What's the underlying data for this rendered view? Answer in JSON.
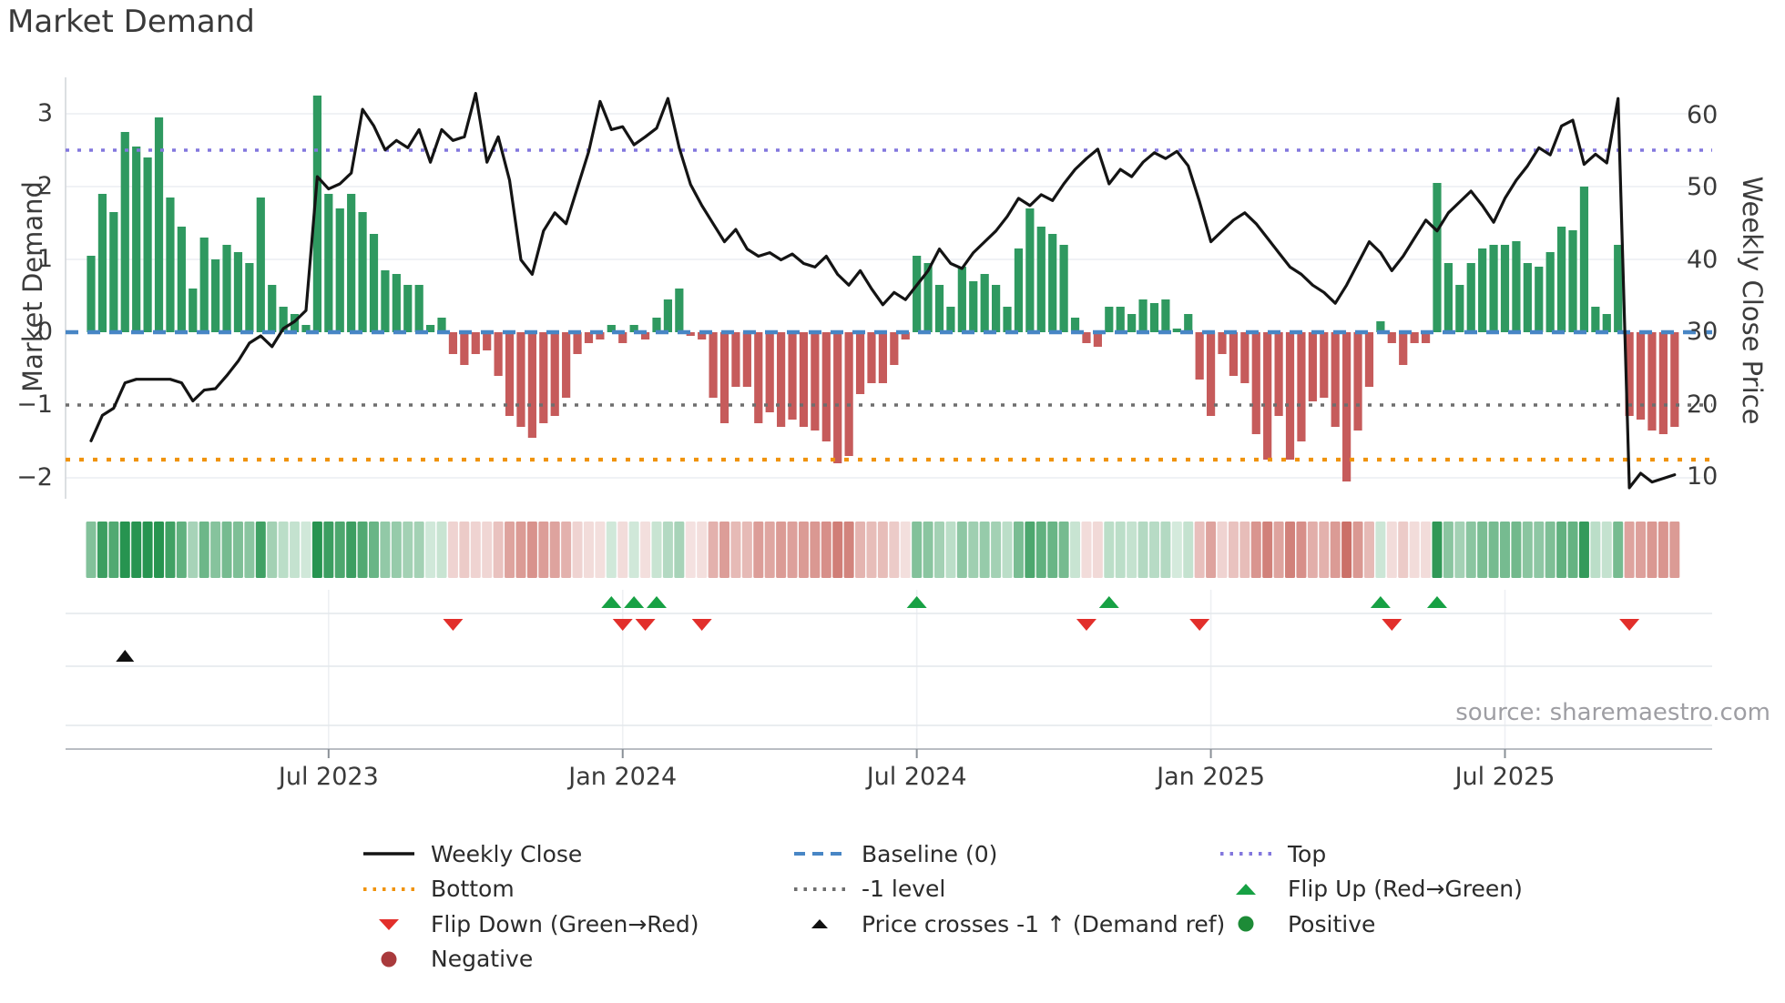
{
  "title": "Market Demand",
  "source_credit": "source: sharemaestro.com",
  "axes": {
    "left_title": "Market Demand",
    "right_title": "Weekly Close Price",
    "left_ticks": [
      {
        "label": "3",
        "value": 3
      },
      {
        "label": "2",
        "value": 2
      },
      {
        "label": "1",
        "value": 1
      },
      {
        "label": "0",
        "value": 0
      },
      {
        "label": "−1",
        "value": -1
      },
      {
        "label": "−2",
        "value": -2
      }
    ],
    "right_ticks": [
      {
        "label": "60",
        "value": 60
      },
      {
        "label": "50",
        "value": 50
      },
      {
        "label": "40",
        "value": 40
      },
      {
        "label": "30",
        "value": 30
      },
      {
        "label": "20",
        "value": 20
      },
      {
        "label": "10",
        "value": 10
      }
    ],
    "x_ticks": [
      {
        "label": "Jul 2023",
        "week": 21
      },
      {
        "label": "Jan 2024",
        "week": 47
      },
      {
        "label": "Jul 2024",
        "week": 73
      },
      {
        "label": "Jan 2025",
        "week": 99
      },
      {
        "label": "Jul 2025",
        "week": 125
      }
    ]
  },
  "chart_data": {
    "type": "bar+line",
    "title": "Market Demand",
    "x_unit": "weekly (Feb 2023 – Oct 2025)",
    "n_points": 141,
    "demand_ylim": [
      -2.35,
      3.5
    ],
    "price_ylim": [
      7,
      65.5
    ],
    "grid": "horizontal-light",
    "demand": [
      1.05,
      1.9,
      1.65,
      2.75,
      2.55,
      2.4,
      2.95,
      1.85,
      1.45,
      0.6,
      1.3,
      1.0,
      1.2,
      1.1,
      0.95,
      1.85,
      0.65,
      0.35,
      0.25,
      0.1,
      3.25,
      1.9,
      1.7,
      1.9,
      1.65,
      1.35,
      0.85,
      0.8,
      0.65,
      0.65,
      0.1,
      0.2,
      -0.3,
      -0.45,
      -0.3,
      -0.25,
      -0.6,
      -1.15,
      -1.3,
      -1.45,
      -1.25,
      -1.15,
      -0.9,
      -0.3,
      -0.15,
      -0.1,
      0.1,
      -0.15,
      0.1,
      -0.1,
      0.2,
      0.45,
      0.6,
      -0.05,
      -0.1,
      -0.9,
      -1.25,
      -0.75,
      -0.75,
      -1.25,
      -1.1,
      -1.3,
      -1.2,
      -1.3,
      -1.35,
      -1.5,
      -1.8,
      -1.7,
      -0.85,
      -0.7,
      -0.7,
      -0.45,
      -0.1,
      1.05,
      0.95,
      0.65,
      0.35,
      0.9,
      0.7,
      0.8,
      0.65,
      0.35,
      1.15,
      1.7,
      1.45,
      1.35,
      1.2,
      0.2,
      -0.15,
      -0.2,
      0.35,
      0.35,
      0.25,
      0.45,
      0.4,
      0.45,
      0.05,
      0.25,
      -0.65,
      -1.15,
      -0.3,
      -0.6,
      -0.7,
      -1.4,
      -1.75,
      -1.15,
      -1.75,
      -1.5,
      -0.95,
      -0.9,
      -1.3,
      -2.05,
      -1.35,
      -0.75,
      0.15,
      -0.15,
      -0.45,
      -0.15,
      -0.15,
      2.05,
      0.95,
      0.65,
      0.95,
      1.15,
      1.2,
      1.2,
      1.25,
      0.95,
      0.9,
      1.1,
      1.45,
      1.4,
      2.0,
      0.35,
      0.25,
      1.2,
      -1.15,
      -1.2,
      -1.35,
      -1.4,
      -1.3
    ],
    "price": [
      15,
      18.5,
      19.5,
      23,
      23.5,
      23.5,
      23.5,
      23.5,
      23,
      20.5,
      22,
      22.2,
      24,
      26,
      28.5,
      29.5,
      28,
      30.5,
      31.5,
      33,
      51.5,
      49.8,
      50.5,
      52,
      60.8,
      58.5,
      55.2,
      56.5,
      55.5,
      58,
      53.5,
      58,
      56.5,
      57,
      63,
      53.5,
      57,
      51,
      40,
      38,
      44,
      46.5,
      45,
      50,
      55,
      61.9,
      58,
      58.4,
      55.9,
      57,
      58.2,
      62.3,
      55.5,
      50.4,
      47.5,
      45,
      42.5,
      44.2,
      41.5,
      40.5,
      41,
      40,
      40.8,
      39.5,
      39,
      40.5,
      38,
      36.5,
      38.5,
      36,
      33.8,
      35.5,
      34.5,
      36.5,
      38.5,
      41.5,
      39.5,
      38.8,
      41,
      42.5,
      44,
      46,
      48.5,
      47.5,
      49,
      48.2,
      50.5,
      52.5,
      54,
      55.3,
      50.5,
      52.5,
      51.5,
      53.5,
      54.8,
      54,
      55,
      53,
      48,
      42.5,
      44,
      45.5,
      46.5,
      45,
      43,
      41,
      39,
      38,
      36.5,
      35.5,
      34,
      36.5,
      39.5,
      42.5,
      41,
      38.5,
      40.5,
      43,
      45.5,
      44,
      46.5,
      48,
      49.5,
      47.5,
      45.2,
      48.5,
      51,
      53,
      55.5,
      54.5,
      58.5,
      59.3,
      53.2,
      54.6,
      53.4,
      62.3,
      8.5,
      10.5,
      9.3,
      9.8,
      10.3
    ],
    "reference_levels": {
      "baseline": 0,
      "top": 2.5,
      "minus1": -1,
      "bottom": -1.75
    },
    "flip_up_weeks": [
      46,
      48,
      50,
      73,
      90,
      114,
      119
    ],
    "flip_down_weeks": [
      32,
      47,
      49,
      54,
      88,
      98,
      115,
      136
    ],
    "price_cross_weeks": [
      3
    ],
    "series_names": {
      "bars": "Market Demand",
      "line": "Weekly Close"
    }
  },
  "legend": {
    "items": [
      {
        "label": "Weekly Close",
        "glyph": "line-solid",
        "color": "#141414",
        "col": 0,
        "row": 0,
        "name": "legend-weekly-close"
      },
      {
        "label": "Baseline (0)",
        "glyph": "line-dashed",
        "color": "#4886c5",
        "col": 1,
        "row": 0,
        "name": "legend-baseline"
      },
      {
        "label": "Top",
        "glyph": "line-dotted",
        "color": "#8277dd",
        "col": 2,
        "row": 0,
        "name": "legend-top"
      },
      {
        "label": "Bottom",
        "glyph": "line-dotted",
        "color": "#f0930c",
        "col": 0,
        "row": 1,
        "name": "legend-bottom"
      },
      {
        "label": "-1 level",
        "glyph": "line-dotted",
        "color": "#6e6e6e",
        "col": 1,
        "row": 1,
        "name": "legend-minus1-level"
      },
      {
        "label": "Flip Up (Red→Green)",
        "glyph": "tri-up",
        "color": "#17a144",
        "col": 2,
        "row": 1,
        "name": "legend-flip-up"
      },
      {
        "label": "Flip Down (Green→Red)",
        "glyph": "tri-down",
        "color": "#e22f2b",
        "col": 0,
        "row": 2,
        "name": "legend-flip-down"
      },
      {
        "label": "Price crosses -1 ↑ (Demand ref)",
        "glyph": "tri-up-sm",
        "color": "#111111",
        "col": 1,
        "row": 2,
        "name": "legend-price-crosses"
      },
      {
        "label": "Positive",
        "glyph": "dot",
        "color": "#1d8b37",
        "col": 2,
        "row": 2,
        "name": "legend-positive"
      },
      {
        "label": "Negative",
        "glyph": "dot",
        "color": "#a93a3c",
        "col": 0,
        "row": 3,
        "name": "legend-negative"
      }
    ]
  },
  "colors": {
    "bar_positive": "#2f9960",
    "bar_negative": "#c65b5b",
    "price_line": "#141414",
    "baseline": "#4886c5",
    "top_line": "#8277dd",
    "minus1_line": "#6e6e6e",
    "bottom_line": "#f0930c",
    "flip_up_marker": "#17a144",
    "flip_down_marker": "#e22f2b",
    "price_cross_marker": "#111111",
    "heat_green": [
      39,
      148,
      80
    ],
    "heat_red": [
      201,
      106,
      98
    ],
    "grid": "#ebeef2",
    "panel_grid": "#e4e7eb",
    "axis_line": "#b9bdc3",
    "spine": "#d4d7db"
  }
}
